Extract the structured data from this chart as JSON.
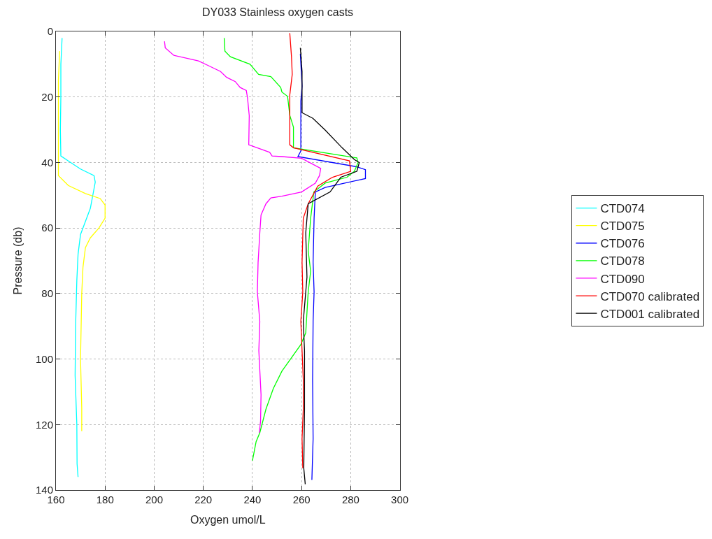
{
  "chart_data": {
    "type": "line",
    "title": "DY033 Stainless oxygen casts",
    "xlabel": "Oxygen umol/L",
    "ylabel": "Pressure (db)",
    "xlim": [
      160,
      300
    ],
    "xticks": [
      160,
      180,
      200,
      220,
      240,
      260,
      280,
      300
    ],
    "ylim": [
      140,
      0
    ],
    "yticks": [
      0,
      20,
      40,
      60,
      80,
      100,
      120,
      140
    ],
    "grid": true,
    "legend": "right",
    "marker": "none",
    "line_style": "solid",
    "series": [
      {
        "name": "CTD074",
        "color": "#00ffff",
        "x": [
          162.5,
          162,
          162,
          161.8,
          162,
          166,
          170,
          175.5,
          176,
          175,
          174,
          172,
          170,
          169,
          168.5,
          168,
          167.8,
          168.5,
          168.6,
          169
        ],
        "values": [
          2,
          10,
          20,
          30,
          38,
          40,
          42,
          44,
          46,
          50,
          54,
          58,
          62,
          68,
          76,
          90,
          105,
          120,
          132,
          136
        ]
      },
      {
        "name": "CTD075",
        "color": "#ffff00",
        "x": [
          161.5,
          161,
          161,
          161,
          165,
          172,
          178,
          180,
          180,
          177.5,
          174,
          172,
          171,
          170.5,
          170,
          170.5,
          170.5
        ],
        "values": [
          6,
          15,
          30,
          44,
          47,
          49.5,
          51,
          53,
          57,
          60,
          63,
          66,
          72,
          80,
          100,
          115,
          122
        ]
      },
      {
        "name": "CTD076",
        "color": "#0000ff",
        "x": [
          259.5,
          260.2,
          259.7,
          259.7,
          258.5,
          282.5,
          286,
          286,
          269.6,
          265.6,
          265.1,
          264.7,
          265.1,
          264.7,
          264.5,
          264.7,
          264.2
        ],
        "values": [
          6.8,
          16.7,
          21.2,
          36.5,
          38.2,
          41.3,
          42.2,
          44.9,
          47.6,
          49,
          57,
          70.5,
          79.5,
          88.5,
          106.4,
          124.3,
          136.9
        ]
      },
      {
        "name": "CTD078",
        "color": "#00ff00",
        "x": [
          228.5,
          228.8,
          231,
          239,
          242.5,
          247.5,
          251.5,
          252,
          254.3,
          255.2,
          256.7,
          256.7,
          282.5,
          283,
          281.5,
          278.5,
          269.6,
          265,
          263.7,
          262.7,
          263.7,
          262.7,
          261.7,
          259.7,
          252,
          248.5,
          245.5,
          243,
          241.5,
          240
        ],
        "values": [
          2,
          6,
          7.7,
          10,
          13.1,
          13.8,
          17.1,
          18.5,
          19.8,
          25.6,
          29.2,
          35.5,
          38.6,
          40,
          42.7,
          44.5,
          46.3,
          49,
          57,
          67,
          73.2,
          79.5,
          92,
          95.6,
          103.7,
          109,
          115.3,
          122.5,
          125.2,
          131
        ]
      },
      {
        "name": "CTD090",
        "color": "#ff00ff",
        "x": [
          204.2,
          204.5,
          208,
          218,
          222,
          227,
          229.5,
          233,
          235,
          237.5,
          238,
          238.7,
          238.5,
          247,
          248,
          252,
          260,
          267.8,
          267.3,
          265.6,
          260,
          252,
          247.5,
          245.5,
          243.5,
          243,
          242.3,
          242,
          243,
          242.6,
          243.5,
          243.3,
          242.8
        ],
        "values": [
          3,
          5,
          7.3,
          9,
          10.4,
          12.2,
          14,
          15.3,
          17.1,
          18,
          20.3,
          25.7,
          34.6,
          36.9,
          38,
          38.2,
          38.7,
          41.8,
          44,
          46.3,
          49,
          50.3,
          50.8,
          52.6,
          56,
          61.5,
          70.5,
          79.5,
          88.5,
          97.4,
          110.9,
          119,
          122.5
        ]
      },
      {
        "name": "CTD070 calibrated",
        "color": "#ff0000",
        "x": [
          255.2,
          255.9,
          256.2,
          255.2,
          255.2,
          256.7,
          279.5,
          280,
          272.6,
          266.6,
          262.7,
          260.7,
          260.2,
          260.5,
          259.7,
          260.2,
          260.7,
          260.7,
          260.2,
          260.5
        ],
        "values": [
          0.5,
          7.7,
          13.1,
          19.4,
          34.6,
          35.5,
          39.5,
          42.7,
          44.5,
          47.2,
          52.6,
          57,
          70.5,
          79.5,
          88.5,
          97.4,
          106.4,
          115.3,
          124.3,
          133.3
        ]
      },
      {
        "name": "CTD001 calibrated",
        "color": "#000000",
        "x": [
          259.5,
          260.2,
          260.2,
          264.6,
          269.6,
          276.5,
          281.5,
          283.5,
          282.5,
          276,
          271.6,
          262.7,
          261.7,
          262.2,
          260.7,
          261.2,
          261.2,
          260.9,
          261.5
        ],
        "values": [
          5,
          12.2,
          24.8,
          26.5,
          30.1,
          35.5,
          39.1,
          40,
          42.7,
          44.5,
          49,
          52.6,
          61.5,
          75,
          88.5,
          97.4,
          115.3,
          133.3,
          138.2
        ]
      }
    ]
  }
}
